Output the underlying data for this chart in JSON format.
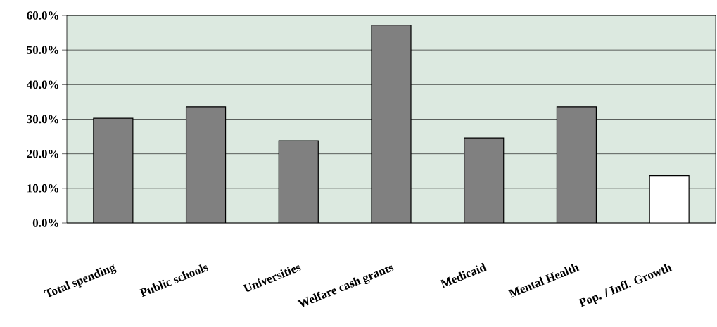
{
  "chart_data": {
    "type": "bar",
    "categories": [
      "Total spending",
      "Public schools",
      "Universities",
      "Welfare cash grants",
      "Medicaid",
      "Mental Health",
      "Pop. / Infl. Growth"
    ],
    "values": [
      30.3,
      33.6,
      23.8,
      57.2,
      24.6,
      33.6,
      13.7
    ],
    "colors": [
      "#808080",
      "#808080",
      "#808080",
      "#808080",
      "#808080",
      "#808080",
      "#ffffff"
    ],
    "ylim": [
      0,
      60
    ],
    "yticks": [
      {
        "value": 0,
        "label": "0.0%"
      },
      {
        "value": 10,
        "label": "10.0%"
      },
      {
        "value": 20,
        "label": "20.0%"
      },
      {
        "value": 30,
        "label": "30.0%"
      },
      {
        "value": 40,
        "label": "40.0%"
      },
      {
        "value": 50,
        "label": "50.0%"
      },
      {
        "value": 60,
        "label": "60.0%"
      }
    ],
    "grid": "y"
  }
}
